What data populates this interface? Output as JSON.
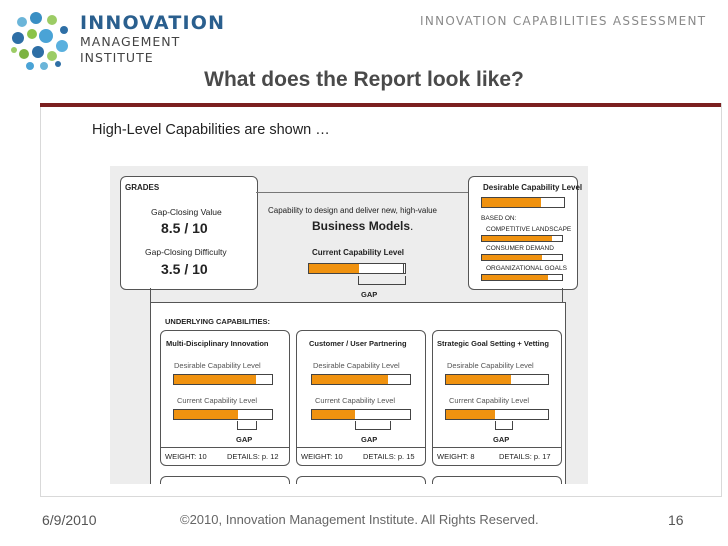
{
  "header": {
    "logo_line1": "INNOVATION",
    "logo_line2": "MANAGEMENT",
    "logo_line3": "INSTITUTE",
    "section_title": "INNOVATION  CAPABILITIES  ASSESSMENT",
    "slide_title": "What does the Report look like?"
  },
  "subheading": "High-Level Capabilities are shown …",
  "report": {
    "grades": {
      "label": "GRADES",
      "gap_closing_value_label": "Gap-Closing Value",
      "gap_closing_value": "8.5 / 10",
      "gap_closing_difficulty_label": "Gap-Closing Difficulty",
      "gap_closing_difficulty": "3.5 / 10"
    },
    "center": {
      "description": "Capability to design and deliver new, high-value",
      "capability": "Business Models",
      "capability_suffix": ".",
      "current_label": "Current Capability Level",
      "current_level": 0.52,
      "desirable_marker": 0.98,
      "gap_label": "GAP"
    },
    "desirable": {
      "title": "Desirable Capability Level",
      "level": 0.72,
      "based_on": "BASED ON:",
      "factors": [
        {
          "label": "COMPETITIVE LANDSCAPE",
          "level": 0.88
        },
        {
          "label": "CONSUMER DEMAND",
          "level": 0.75
        },
        {
          "label": "ORGANIZATIONAL GOALS",
          "level": 0.82
        }
      ]
    },
    "underlying_label": "UNDERLYING CAPABILITIES:",
    "sub_capabilities": [
      {
        "title": "Multi-Disciplinary Innovation",
        "desirable_label": "Desirable Capability Level",
        "desirable_level": 0.84,
        "current_label": "Current Capability Level",
        "current_level": 0.65,
        "gap_label": "GAP",
        "weight": "WEIGHT: 10",
        "details": "DETAILS: p. 12"
      },
      {
        "title": "Customer / User Partnering",
        "desirable_label": "Desirable Capability Level",
        "desirable_level": 0.78,
        "current_label": "Current Capability Level",
        "current_level": 0.44,
        "gap_label": "GAP",
        "weight": "WEIGHT: 10",
        "details": "DETAILS: p. 15"
      },
      {
        "title": "Strategic Goal Setting + Vetting",
        "desirable_label": "Desirable Capability Level",
        "desirable_level": 0.64,
        "current_label": "Current Capability Level",
        "current_level": 0.48,
        "gap_label": "GAP",
        "weight": "WEIGHT: 8",
        "details": "DETAILS: p. 17"
      }
    ]
  },
  "footer": {
    "date": "6/9/2010",
    "copyright": "©2010, Innovation Management Institute. All Rights Reserved.",
    "page": "16"
  },
  "colors": {
    "accent_orange": "#f0920f",
    "title_gray": "#4a4a4a",
    "logo_blue": "#2a5f8e",
    "frame_top": "#7b1f1f"
  }
}
